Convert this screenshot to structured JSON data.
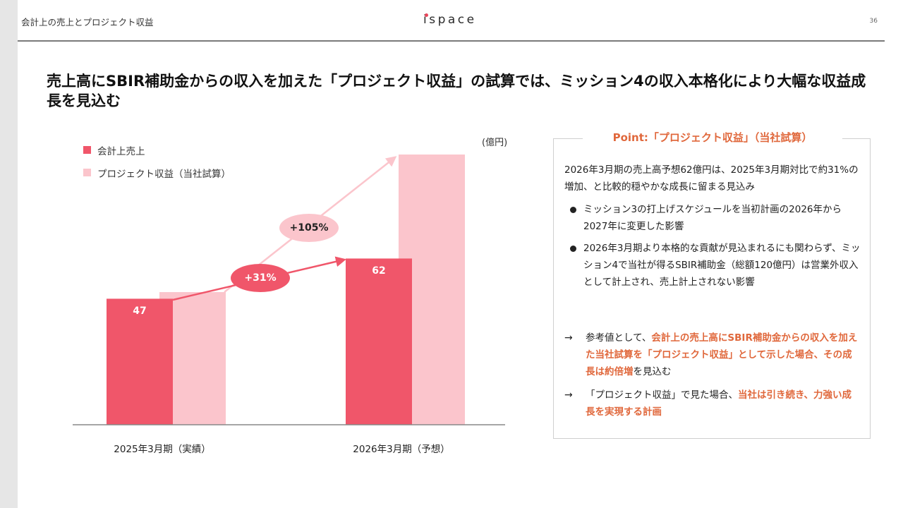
{
  "header": {
    "section_title": "会計上の売上とプロジェクト収益",
    "logo": "ispace",
    "page_number": "36"
  },
  "headline": "売上高にSBIR補助金からの収入を加えた「プロジェクト収益」の試算では、ミッション4の収入本格化により大幅な収益成長を見込む",
  "chart_data": {
    "type": "bar",
    "unit": "(億円)",
    "categories": [
      "2025年3月期（実績）",
      "2026年3月期（予想）"
    ],
    "series": [
      {
        "name": "会計上売上",
        "values": [
          47,
          62
        ],
        "labels": [
          "47",
          "62"
        ],
        "color": "#f0566a"
      },
      {
        "name": "プロジェクト収益（当社試算）",
        "values": [
          null,
          null
        ],
        "labels": [
          "",
          ""
        ],
        "color": "#fbc5cc"
      }
    ],
    "annotations": [
      {
        "series": "会計上売上",
        "text": "+31%"
      },
      {
        "series": "プロジェクト収益（当社試算）",
        "text": "+105%"
      }
    ],
    "legend_position": "top-left",
    "grid": false
  },
  "point": {
    "title": "Point:「プロジェクト収益」（当社試算）",
    "summary": "2026年3月期の売上高予想62億円は、2025年3月期対比で約31%の増加、と比較的穏やかな成長に留まる見込み",
    "bullets": [
      "ミッション3の打上げスケジュールを当初計画の2026年から2027年に変更した影響",
      "2026年3月期より本格的な貢献が見込まれるにも関わらず、ミッション4で当社が得るSBIR補助金（総額120億円）は営業外収入として計上され、売上計上されない影響"
    ],
    "arrows": [
      {
        "pre": "参考値として、",
        "emph": "会計上の売上高にSBIR補助金からの収入を加えた当社試算を「プロジェクト収益」として示した場合、その成長は約倍増",
        "post": "を見込む"
      },
      {
        "pre": "「プロジェクト収益」で見た場合、",
        "emph": "当社は引き続き、力強い成長を実現する計画",
        "post": ""
      }
    ],
    "arrow_glyph": "→",
    "accent_color": "#e0683c"
  }
}
